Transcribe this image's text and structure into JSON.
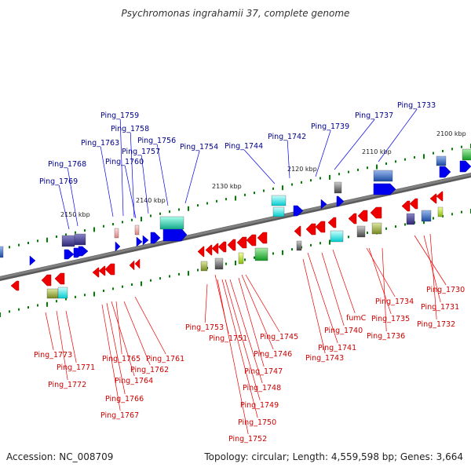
{
  "title": "Psychromonas ingrahamii 37, complete genome",
  "footer": {
    "accession": "Accession: NC_008709",
    "summary": "Topology: circular; Length: 4,559,598 bp; Genes: 3,664"
  },
  "colors": {
    "forward_gene": "#0000ee",
    "reverse_gene": "#ee0000",
    "backbone": "#808080",
    "tick": "#008000",
    "label_forward": "#00008b",
    "label_reverse": "#cc0000"
  },
  "scale_labels": [
    "2100 kbp",
    "2110 kbp",
    "2120 kbp",
    "2130 kbp",
    "2140 kbp",
    "2150 kbp"
  ],
  "top_labels": [
    "Ping_1733",
    "Ping_1737",
    "Ping_1739",
    "Ping_1742",
    "Ping_1744",
    "Ping_1754",
    "Ping_1756",
    "Ping_1757",
    "Ping_1758",
    "Ping_1759",
    "Ping_1760",
    "Ping_1763",
    "Ping_1768",
    "Ping_1769"
  ],
  "bottom_labels": [
    "Ping_1730",
    "Ping_1731",
    "Ping_1732",
    "Ping_1734",
    "Ping_1735",
    "Ping_1736",
    "fumC",
    "Ping_1740",
    "Ping_1741",
    "Ping_1743",
    "Ping_1745",
    "Ping_1746",
    "Ping_1747",
    "Ping_1748",
    "Ping_1749",
    "Ping_1750",
    "Ping_1751",
    "Ping_1752",
    "Ping_1753",
    "Ping_1761",
    "Ping_1762",
    "Ping_1764",
    "Ping_1765",
    "Ping_1766",
    "Ping_1767",
    "Ping_1771",
    "Ping_1772",
    "Ping_1773"
  ]
}
